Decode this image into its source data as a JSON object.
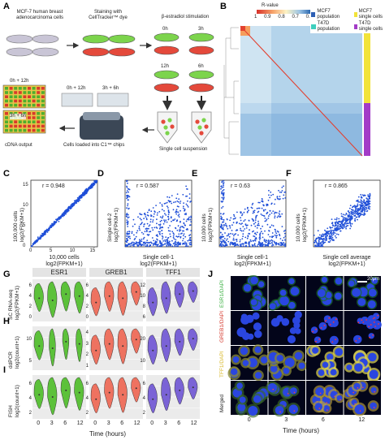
{
  "panelA": {
    "label": "A",
    "cells_text": "MCF-7 human breast\nadenocarcinoma cells",
    "staining_text": "Staining with\nCellTracker™ dye",
    "estradiol_text": "β-estradiol stimulation",
    "time_0h": "0h",
    "time_3h": "3h",
    "time_12h": "12h",
    "time_6h": "6h",
    "chip_0h_12h": "0h + 12h",
    "chip_3h_6h": "3h + 6h",
    "grid_0h_12h": "0h + 12h",
    "grid_3h_6h": "3h + 6h",
    "cdna_output": "cDNA output",
    "chips_text": "Cells loaded into C1™ chips",
    "suspension_text": "Single cell suspension"
  },
  "panelB": {
    "label": "B",
    "legend_title": "R-value",
    "legend_ticks": [
      "1",
      "0.9",
      "0.8",
      "0.7",
      "0.6"
    ],
    "legend_items": [
      "MCF7 population",
      "T47D population",
      "MCF7 single cells",
      "T47D single cells"
    ],
    "colors": {
      "mcf7_pop": "#2d5fb5",
      "t47d_pop": "#3fcfbe",
      "mcf7_single": "#f2e33a",
      "t47d_single": "#a33bc7"
    }
  },
  "scatter": [
    {
      "label": "C",
      "r": "r = 0.948",
      "ylabel1": "100,000 cells",
      "ylabel2": "log2(FPKM+1)",
      "xlabel1": "10,000 cells",
      "xlabel2": "log2(FPKM+1)",
      "xticks": [
        "0",
        "5",
        "10",
        "15"
      ],
      "yticks": [
        "0",
        "5",
        "10",
        "15"
      ]
    },
    {
      "label": "D",
      "r": "r = 0.587",
      "ylabel1": "Single cell-2",
      "ylabel2": "log2(FPKM+1)",
      "xlabel1": "Single cell-1",
      "xlabel2": "log2(FPKM+1)",
      "xticks": [],
      "yticks": []
    },
    {
      "label": "E",
      "r": "r = 0.63",
      "ylabel1": "10,000 cells",
      "ylabel2": "log2(FPKM+1)",
      "xlabel1": "Single cell-1",
      "xlabel2": "log2(FPKM+1)",
      "xticks": [],
      "yticks": []
    },
    {
      "label": "F",
      "r": "r = 0.865",
      "ylabel1": "10,000 cells",
      "ylabel2": "log2(FPKM+1)",
      "xlabel1": "Single cell average",
      "xlabel2": "log2(FPKM+1)",
      "xticks": [],
      "yticks": []
    }
  ],
  "violin": {
    "genes": [
      "ESR1",
      "GREB1",
      "TFF1"
    ],
    "rows": [
      {
        "label": "G",
        "ylabel1": "SC RNA-seq",
        "ylabel2": "log2(FPKM+1)",
        "yticks": [
          [
            "6",
            "4",
            "2",
            "0"
          ],
          [
            "6",
            "4",
            "2",
            "0"
          ],
          [
            "12",
            "10",
            "8",
            "6"
          ]
        ]
      },
      {
        "label": "H",
        "ylabel1": "ddPCR",
        "ylabel2": "log2(count+1)",
        "yticks": [
          [
            "10",
            "5"
          ],
          [
            "4",
            "3",
            "2",
            "1"
          ],
          [
            "20",
            "10"
          ]
        ]
      },
      {
        "label": "I",
        "ylabel1": "FISH",
        "ylabel2": "log2(count+1)",
        "yticks": [
          [
            "6",
            "4",
            "2"
          ],
          [
            "6",
            "4",
            "2"
          ],
          [
            "6",
            "4",
            "2"
          ]
        ]
      }
    ],
    "xticks": [
      "0",
      "3",
      "6",
      "12"
    ],
    "xlabel": "Time (hours)",
    "colors": [
      "#5cc13a",
      "#ee7260",
      "#7a63d6"
    ]
  },
  "panelJ": {
    "label": "J",
    "scale": "20μm",
    "row_labels": [
      "ESR1/DAPI",
      "GREB1/DAPI",
      "TFF1/DAPI",
      "Merged"
    ],
    "xticks": [
      "0",
      "3",
      "6",
      "12"
    ],
    "xlabel": "Time (hours)"
  }
}
